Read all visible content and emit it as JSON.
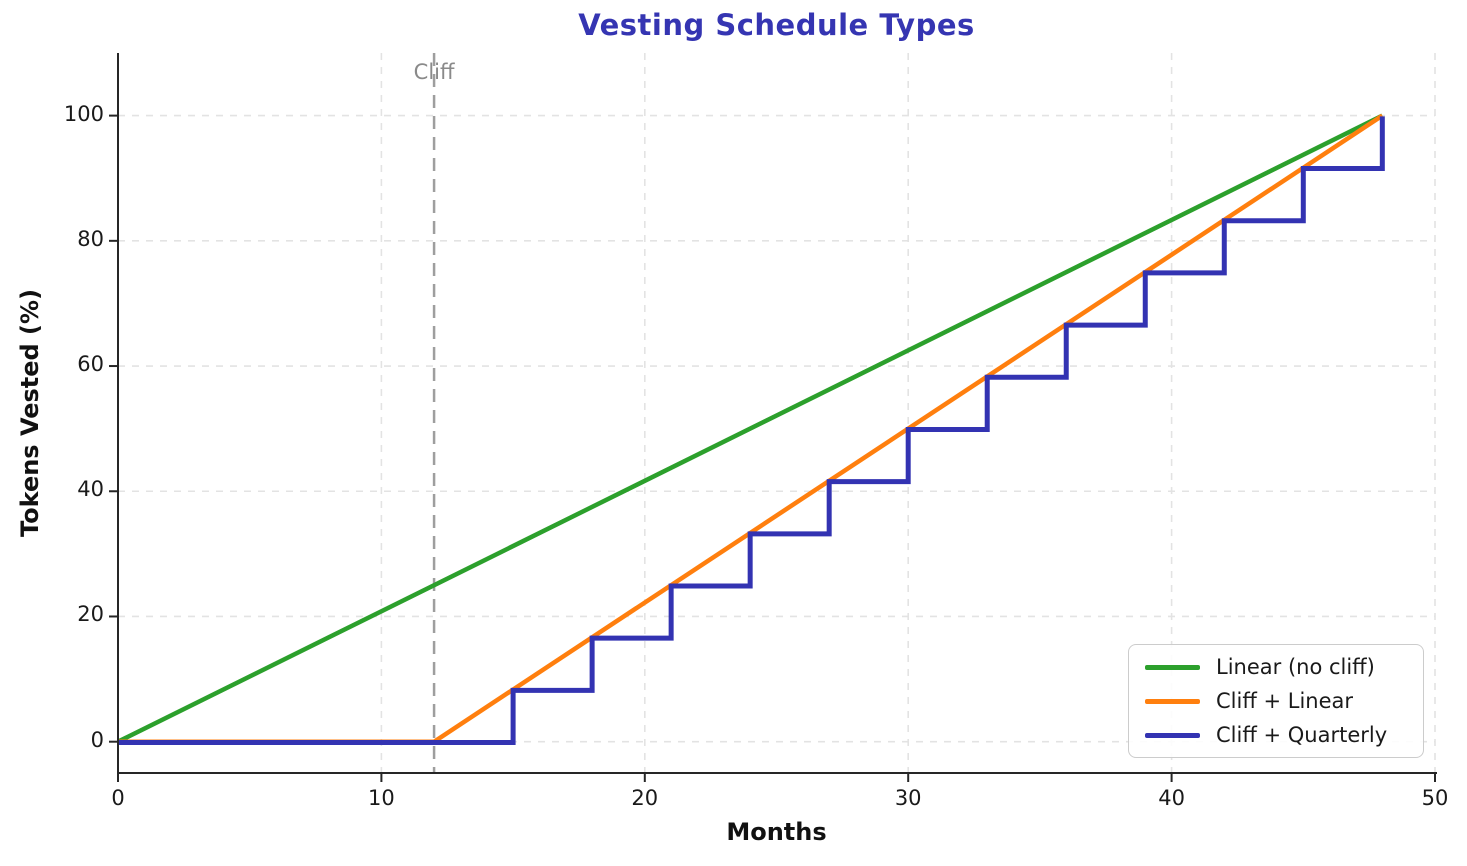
{
  "chart_data": {
    "type": "line",
    "title": "Vesting Schedule Types",
    "title_color": "#3535b2",
    "xlabel": "Months",
    "ylabel": "Tokens Vested (%)",
    "xlim": [
      0,
      50
    ],
    "ylim": [
      -5,
      110
    ],
    "xticks": [
      0,
      10,
      20,
      30,
      40,
      50
    ],
    "yticks": [
      0,
      20,
      40,
      60,
      80,
      100
    ],
    "grid": true,
    "grid_color": "#e3e3e3",
    "spine_color": "#262626",
    "legend_position": "lower right",
    "annotations": [
      {
        "type": "vline",
        "x": 12,
        "label": "Cliff",
        "color": "#9e9e9e",
        "style": "dashed"
      }
    ],
    "series": [
      {
        "name": "Linear (no cliff)",
        "color": "#2ca02c",
        "step": false,
        "points": [
          [
            0,
            0
          ],
          [
            48,
            100
          ]
        ]
      },
      {
        "name": "Cliff + Linear",
        "color": "#ff7f0e",
        "step": false,
        "points": [
          [
            0,
            0
          ],
          [
            12,
            0
          ],
          [
            48,
            100
          ]
        ]
      },
      {
        "name": "Cliff + Quarterly",
        "color": "#3333b2",
        "step": true,
        "points": [
          [
            0,
            0
          ],
          [
            15,
            8.33
          ],
          [
            18,
            16.67
          ],
          [
            21,
            25
          ],
          [
            24,
            33.33
          ],
          [
            27,
            41.67
          ],
          [
            30,
            50
          ],
          [
            33,
            58.33
          ],
          [
            36,
            66.67
          ],
          [
            39,
            75
          ],
          [
            42,
            83.33
          ],
          [
            45,
            91.67
          ],
          [
            48,
            100
          ]
        ]
      }
    ]
  }
}
